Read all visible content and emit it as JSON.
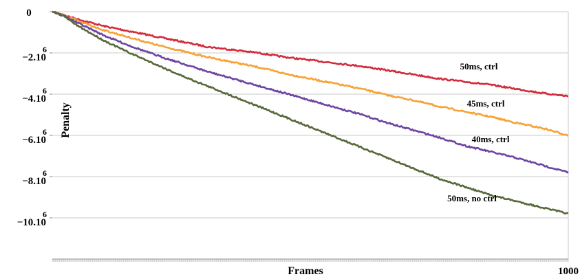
{
  "chart_data": {
    "type": "line",
    "xlabel": "Frames",
    "ylabel": "Penalty",
    "x_tick_label": "1000",
    "xlim": [
      0,
      1000
    ],
    "ylim": [
      -12000000,
      0
    ],
    "grid": "horizontal",
    "y_ticks": [
      {
        "value": 0,
        "mantissa": "0",
        "exp": ""
      },
      {
        "value": -2000000,
        "mantissa": "−2.10",
        "exp": "6"
      },
      {
        "value": -4000000,
        "mantissa": "−4.10",
        "exp": "6"
      },
      {
        "value": -6000000,
        "mantissa": "−6.10",
        "exp": "6"
      },
      {
        "value": -8000000,
        "mantissa": "−8.10",
        "exp": "6"
      },
      {
        "value": -10000000,
        "mantissa": "−10.10",
        "exp": "6"
      }
    ],
    "series": [
      {
        "name": "50ms, ctrl",
        "color": "#d12c3c",
        "points": [
          [
            0,
            0
          ],
          [
            20,
            -150000
          ],
          [
            50,
            -370000
          ],
          [
            100,
            -700000
          ],
          [
            150,
            -950000
          ],
          [
            200,
            -1200000
          ],
          [
            250,
            -1450000
          ],
          [
            300,
            -1700000
          ],
          [
            350,
            -1850000
          ],
          [
            400,
            -2000000
          ],
          [
            450,
            -2200000
          ],
          [
            500,
            -2350000
          ],
          [
            550,
            -2500000
          ],
          [
            600,
            -2650000
          ],
          [
            650,
            -2850000
          ],
          [
            700,
            -3050000
          ],
          [
            750,
            -3250000
          ],
          [
            800,
            -3400000
          ],
          [
            850,
            -3550000
          ],
          [
            900,
            -3750000
          ],
          [
            950,
            -3950000
          ],
          [
            1000,
            -4100000
          ]
        ]
      },
      {
        "name": "45ms, ctrl",
        "color": "#f7a236",
        "points": [
          [
            0,
            0
          ],
          [
            20,
            -140000
          ],
          [
            50,
            -450000
          ],
          [
            100,
            -900000
          ],
          [
            150,
            -1250000
          ],
          [
            200,
            -1600000
          ],
          [
            250,
            -1900000
          ],
          [
            300,
            -2200000
          ],
          [
            350,
            -2450000
          ],
          [
            400,
            -2700000
          ],
          [
            450,
            -3000000
          ],
          [
            500,
            -3250000
          ],
          [
            550,
            -3500000
          ],
          [
            600,
            -3750000
          ],
          [
            650,
            -4050000
          ],
          [
            700,
            -4300000
          ],
          [
            750,
            -4600000
          ],
          [
            800,
            -4850000
          ],
          [
            850,
            -5100000
          ],
          [
            900,
            -5400000
          ],
          [
            950,
            -5650000
          ],
          [
            1000,
            -6000000
          ]
        ]
      },
      {
        "name": "40ms, ctrl",
        "color": "#6b45a0",
        "points": [
          [
            0,
            0
          ],
          [
            20,
            -160000
          ],
          [
            50,
            -550000
          ],
          [
            100,
            -1150000
          ],
          [
            150,
            -1650000
          ],
          [
            200,
            -2100000
          ],
          [
            250,
            -2500000
          ],
          [
            300,
            -2900000
          ],
          [
            350,
            -3250000
          ],
          [
            400,
            -3600000
          ],
          [
            450,
            -3950000
          ],
          [
            500,
            -4300000
          ],
          [
            550,
            -4650000
          ],
          [
            600,
            -5000000
          ],
          [
            650,
            -5400000
          ],
          [
            700,
            -5750000
          ],
          [
            750,
            -6100000
          ],
          [
            800,
            -6500000
          ],
          [
            850,
            -6800000
          ],
          [
            900,
            -7100000
          ],
          [
            950,
            -7450000
          ],
          [
            1000,
            -7800000
          ]
        ]
      },
      {
        "name": "50ms, no ctrl",
        "color": "#58683a",
        "points": [
          [
            0,
            0
          ],
          [
            20,
            -180000
          ],
          [
            50,
            -700000
          ],
          [
            100,
            -1400000
          ],
          [
            150,
            -2000000
          ],
          [
            200,
            -2550000
          ],
          [
            250,
            -3100000
          ],
          [
            300,
            -3600000
          ],
          [
            350,
            -4100000
          ],
          [
            400,
            -4600000
          ],
          [
            450,
            -5100000
          ],
          [
            500,
            -5600000
          ],
          [
            550,
            -6100000
          ],
          [
            600,
            -6600000
          ],
          [
            650,
            -7100000
          ],
          [
            700,
            -7600000
          ],
          [
            750,
            -8100000
          ],
          [
            800,
            -8500000
          ],
          [
            850,
            -8900000
          ],
          [
            900,
            -9200000
          ],
          [
            950,
            -9500000
          ],
          [
            1000,
            -9800000
          ]
        ]
      }
    ]
  }
}
